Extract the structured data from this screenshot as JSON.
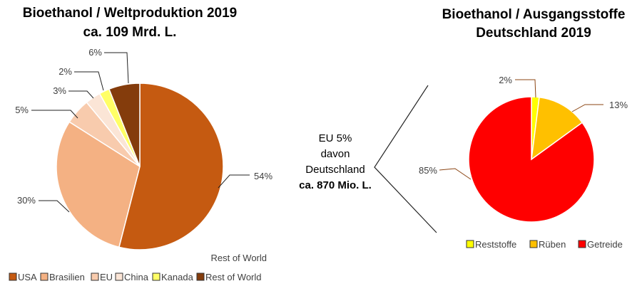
{
  "chart_data": [
    {
      "type": "pie",
      "title": [
        "Bioethanol / Weltproduktion 2019",
        "ca. 109 Mrd. L."
      ],
      "categories": [
        "USA",
        "Brasilien",
        "EU",
        "China",
        "Kanada",
        "Rest of World"
      ],
      "values": [
        54,
        30,
        5,
        3,
        2,
        6
      ],
      "labels": [
        "54%",
        "30%",
        "5%",
        "3%",
        "2%",
        "6%"
      ],
      "colors": [
        "#C55A11",
        "#F4B183",
        "#F8CBAD",
        "#FBE5D6",
        "#FFFF66",
        "#843C0C"
      ],
      "extra_label": "Rest of World",
      "legend_position": "bottom"
    },
    {
      "type": "pie",
      "title": [
        "Bioethanol / Ausgangsstoffe",
        "Deutschland 2019"
      ],
      "categories": [
        "Reststoffe",
        "Rüben",
        "Getreide"
      ],
      "values": [
        2,
        13,
        85
      ],
      "labels": [
        "2%",
        "13%",
        "85%"
      ],
      "colors": [
        "#FFFF00",
        "#FFC000",
        "#FF0000"
      ],
      "legend_position": "bottom"
    }
  ],
  "annotation": {
    "line1": "EU 5%",
    "line2": "davon",
    "line3": "Deutschland",
    "line4": "ca. 870 Mio. L."
  }
}
